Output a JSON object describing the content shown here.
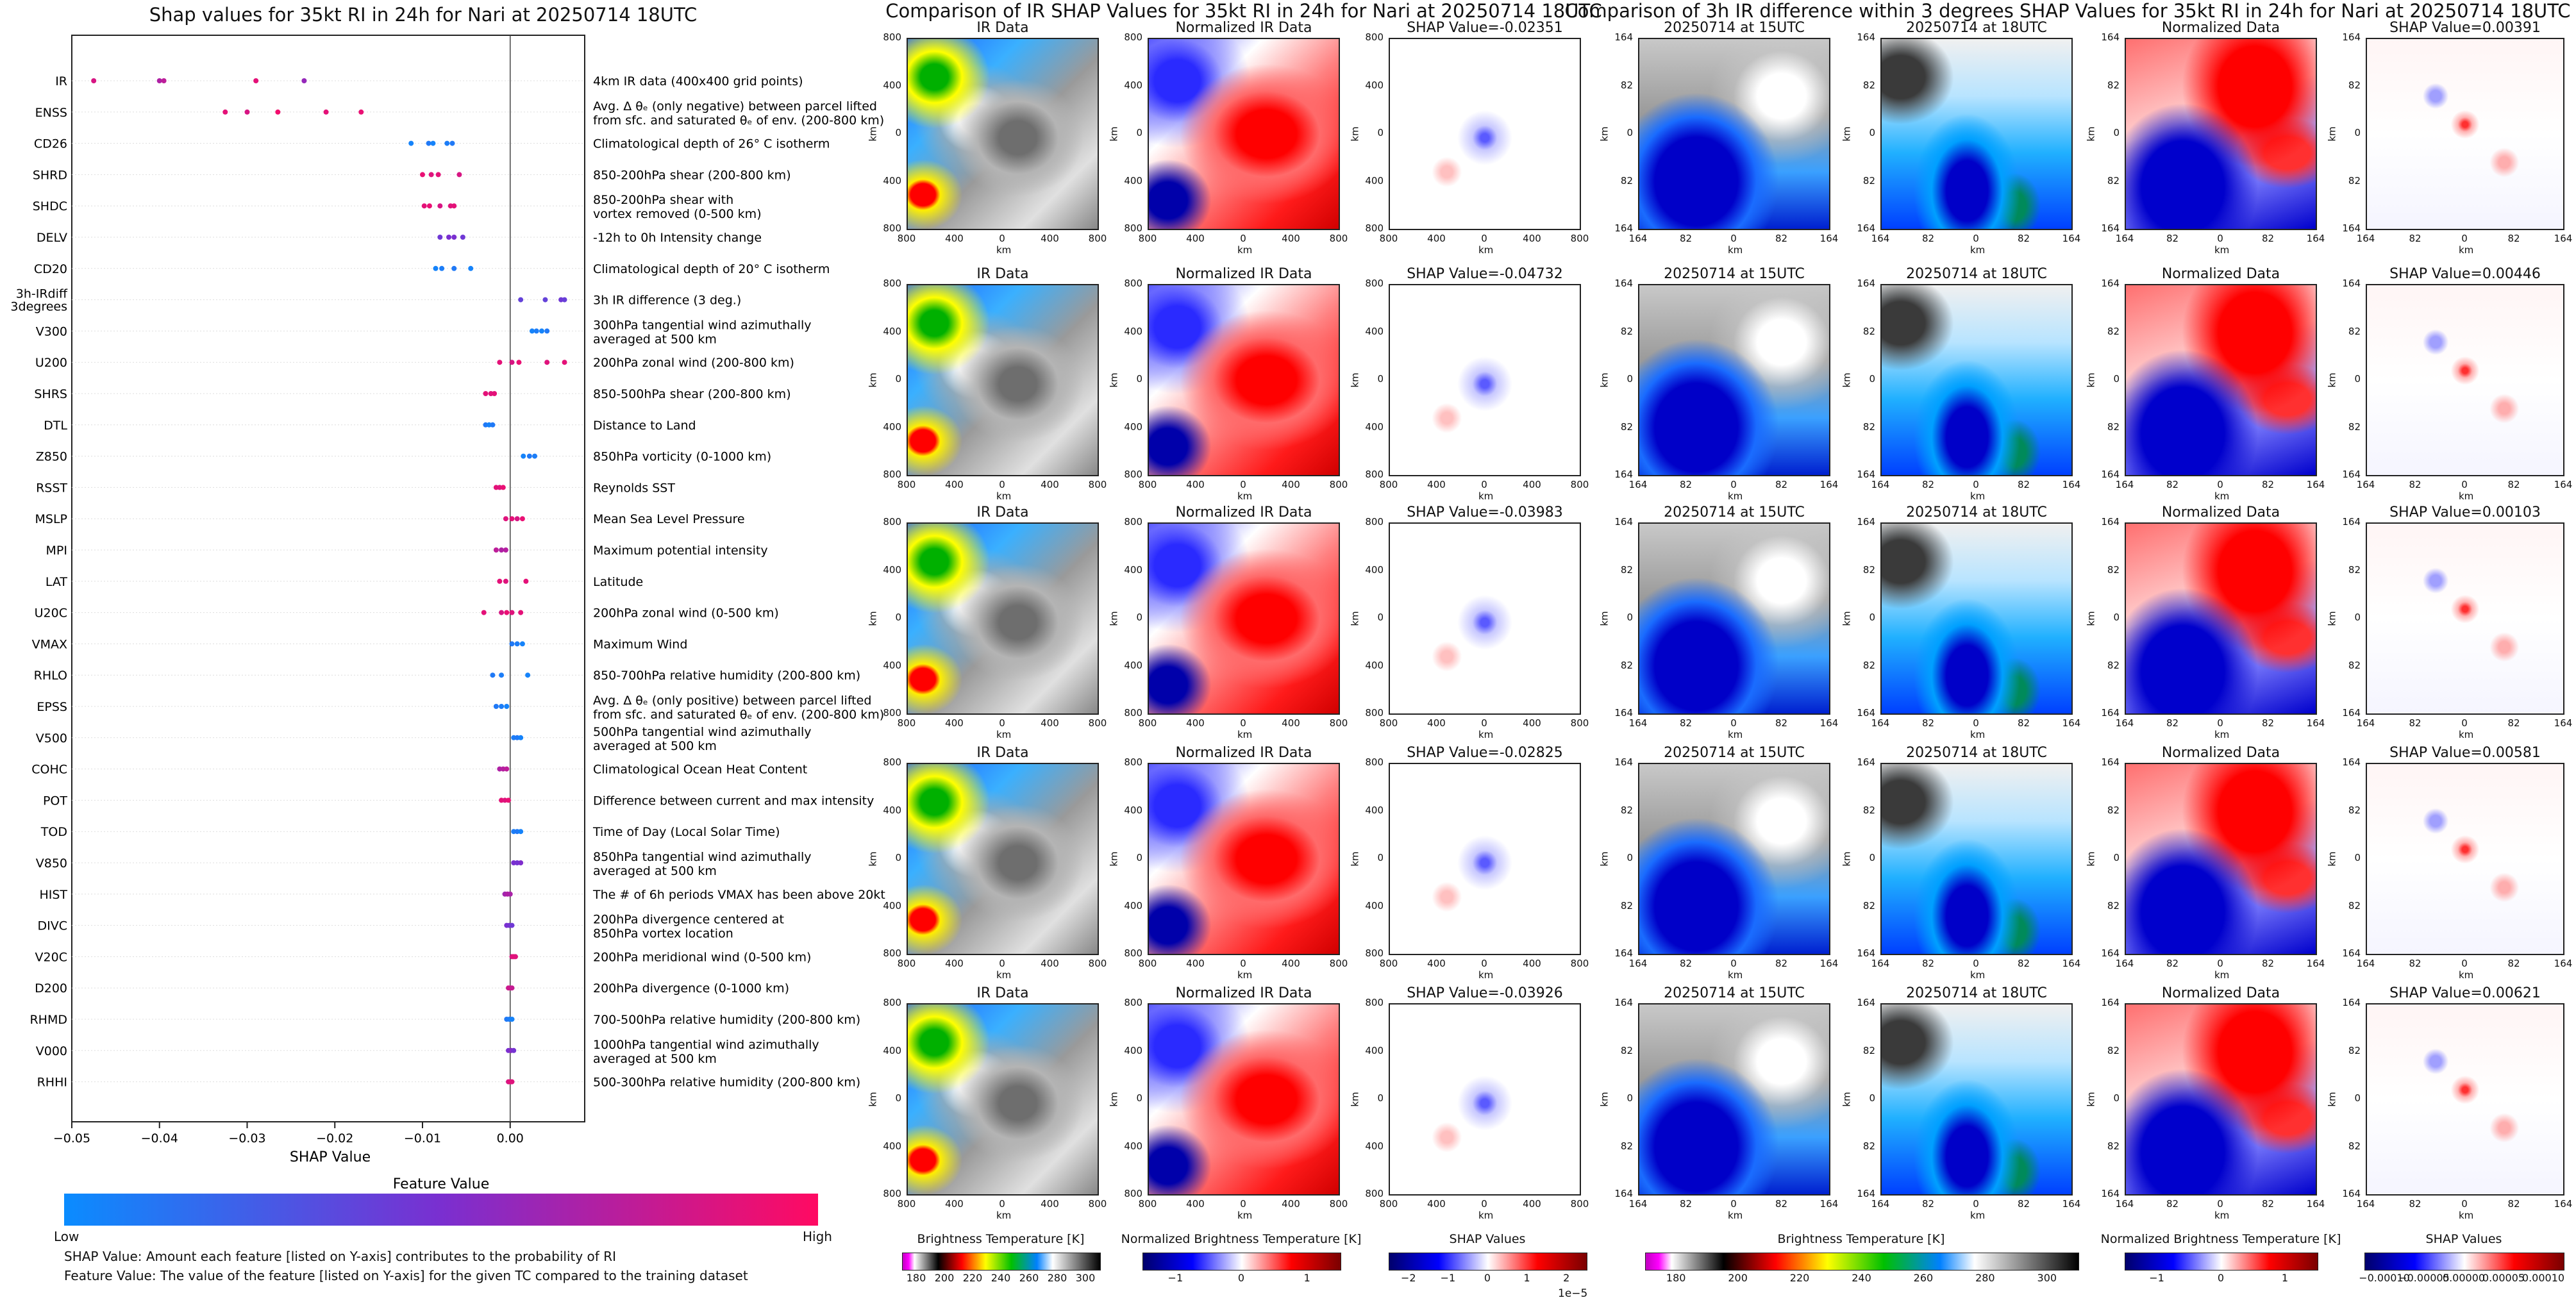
{
  "shap_title": "Shap values for 35kt RI in 24h for Nari at 20250714 18UTC",
  "ir_title": "Comparison of IR SHAP Values for 35kt RI in 24h for Nari at 20250714 18UTC",
  "diff_title": "Comparison of 3h IR difference within 3 degrees SHAP Values for 35kt RI in 24h for Nari at 20250714 18UTC",
  "legend": {
    "title": "Feature Value",
    "low": "Low",
    "high": "High"
  },
  "footnotes": [
    "SHAP Value: Amount each feature [listed on Y-axis] contributes to the probability of RI",
    "Feature Value: The value of the feature [listed on Y-axis] for the given TC compared to the training dataset"
  ],
  "ir_panels": {
    "col_titles": [
      "IR Data",
      "Normalized IR Data"
    ],
    "shap_values": [
      "SHAP Value=-0.02351",
      "SHAP Value=-0.04732",
      "SHAP Value=-0.03983",
      "SHAP Value=-0.02825",
      "SHAP Value=-0.03926"
    ],
    "ticks": [
      "800",
      "400",
      "0",
      "400",
      "800"
    ],
    "axis_label": "km"
  },
  "diff_panels": {
    "col_titles": [
      "20250714 at 15UTC",
      "20250714 at 18UTC",
      "Normalized Data"
    ],
    "shap_values": [
      "SHAP Value=0.00391",
      "SHAP Value=0.00446",
      "SHAP Value=0.00103",
      "SHAP Value=0.00581",
      "SHAP Value=0.00621"
    ],
    "ticks": [
      "164",
      "82",
      "0",
      "82",
      "164"
    ],
    "axis_label": "km"
  },
  "colorbars": {
    "ir_bt": {
      "label": "Brightness Temperature [K]",
      "ticks": [
        "180",
        "200",
        "220",
        "240",
        "260",
        "280",
        "300"
      ]
    },
    "ir_norm": {
      "label": "Normalized Brightness Temperature [K]",
      "ticks": [
        "−1",
        "0",
        "1"
      ]
    },
    "ir_shap": {
      "label": "SHAP Values",
      "ticks": [
        "−2",
        "−1",
        "0",
        "1",
        "2"
      ],
      "exponent": "1e−5"
    },
    "d_bt": {
      "label": "Brightness Temperature [K]",
      "ticks": [
        "180",
        "200",
        "220",
        "240",
        "260",
        "280",
        "300"
      ]
    },
    "d_norm": {
      "label": "Normalized Brightness Temperature [K]",
      "ticks": [
        "−1",
        "0",
        "1"
      ]
    },
    "d_shap": {
      "label": "SHAP Values",
      "ticks": [
        "−0.00010",
        "−0.00005",
        "0.00000",
        "0.00005",
        "0.00010"
      ]
    }
  },
  "chart_data": {
    "type": "scatter",
    "title": "Shap values for 35kt RI in 24h for Nari at 20250714 18UTC",
    "xlabel": "SHAP Value",
    "xlim": [
      -0.05,
      0.0085
    ],
    "xticks": [
      -0.05,
      -0.04,
      -0.03,
      -0.02,
      -0.01,
      0.0
    ],
    "features": [
      {
        "name": "IR",
        "desc": "4km IR data (400x400 grid points)",
        "shap": [
          -0.0475,
          -0.04,
          -0.0395,
          -0.029,
          -0.0235
        ],
        "fv": [
          0.85,
          0.7,
          0.75,
          0.9,
          0.6
        ]
      },
      {
        "name": "ENSS",
        "desc": "Avg. Δ θₑ (only negative) between parcel lifted\nfrom sfc. and saturated θₑ of env. (200-800 km)",
        "shap": [
          -0.0325,
          -0.03,
          -0.0265,
          -0.021,
          -0.017
        ],
        "fv": [
          0.9,
          0.85,
          0.95,
          0.9,
          0.92
        ]
      },
      {
        "name": "CD26",
        "desc": "Climatological depth of 26° C isotherm",
        "shap": [
          -0.0113,
          -0.0093,
          -0.0088,
          -0.0072,
          -0.0066
        ],
        "fv": [
          0.05,
          0.1,
          0.05,
          0.08,
          0.1
        ]
      },
      {
        "name": "SHRD",
        "desc": "850-200hPa shear (200-800 km)",
        "shap": [
          -0.01,
          -0.009,
          -0.0082,
          -0.0058
        ],
        "fv": [
          0.92,
          0.88,
          0.9,
          0.85
        ]
      },
      {
        "name": "SHDC",
        "desc": "850-200hPa shear with\nvortex removed (0-500 km)",
        "shap": [
          -0.0098,
          -0.0092,
          -0.008,
          -0.0068,
          -0.0064
        ],
        "fv": [
          0.9,
          0.92,
          0.85,
          0.88,
          0.9
        ]
      },
      {
        "name": "DELV",
        "desc": "-12h to 0h Intensity change",
        "shap": [
          -0.008,
          -0.007,
          -0.0064,
          -0.0054
        ],
        "fv": [
          0.45,
          0.5,
          0.5,
          0.45
        ]
      },
      {
        "name": "CD20",
        "desc": "Climatological depth of 20° C isotherm",
        "shap": [
          -0.0085,
          -0.0078,
          -0.0064,
          -0.0045
        ],
        "fv": [
          0.05,
          0.08,
          0.1,
          0.05
        ]
      },
      {
        "name": "3h-IRdiff\n3degrees",
        "desc": "3h IR difference (3 deg.)",
        "shap": [
          0.0012,
          0.004,
          0.0058,
          0.0062
        ],
        "fv": [
          0.4,
          0.4,
          0.45,
          0.42
        ]
      },
      {
        "name": "V300",
        "desc": "300hPa tangential wind azimuthally\naveraged at 500 km",
        "shap": [
          0.0025,
          0.003,
          0.0036,
          0.0042
        ],
        "fv": [
          0.05,
          0.08,
          0.05,
          0.1
        ]
      },
      {
        "name": "U200",
        "desc": "200hPa zonal wind (200-800 km)",
        "shap": [
          -0.0012,
          0.0002,
          0.001,
          0.0042,
          0.0062
        ],
        "fv": [
          0.9,
          0.85,
          0.92,
          0.88,
          0.9
        ]
      },
      {
        "name": "SHRS",
        "desc": "850-500hPa shear (200-800 km)",
        "shap": [
          -0.0028,
          -0.0022,
          -0.0018
        ],
        "fv": [
          0.9,
          0.88,
          0.9
        ]
      },
      {
        "name": "DTL",
        "desc": "Distance to Land",
        "shap": [
          -0.0028,
          -0.0024,
          -0.002
        ],
        "fv": [
          0.1,
          0.05,
          0.1
        ]
      },
      {
        "name": "Z850",
        "desc": "850hPa vorticity (0-1000 km)",
        "shap": [
          0.0015,
          0.0022,
          0.0028
        ],
        "fv": [
          0.05,
          0.1,
          0.08
        ]
      },
      {
        "name": "RSST",
        "desc": "Reynolds SST",
        "shap": [
          -0.0016,
          -0.0012,
          -0.0008
        ],
        "fv": [
          0.9,
          0.88,
          0.92
        ]
      },
      {
        "name": "MSLP",
        "desc": "Mean Sea Level Pressure",
        "shap": [
          -0.0005,
          0.0002,
          0.0008,
          0.0014
        ],
        "fv": [
          0.88,
          0.9,
          0.85,
          0.92
        ]
      },
      {
        "name": "MPI",
        "desc": "Maximum potential intensity",
        "shap": [
          -0.0016,
          -0.001,
          -0.0005
        ],
        "fv": [
          0.75,
          0.7,
          0.72
        ]
      },
      {
        "name": "LAT",
        "desc": "Latitude",
        "shap": [
          -0.0012,
          -0.0005,
          0.0018
        ],
        "fv": [
          0.9,
          0.88,
          0.9
        ]
      },
      {
        "name": "U20C",
        "desc": "200hPa zonal wind (0-500 km)",
        "shap": [
          -0.003,
          -0.001,
          -0.0004,
          0.0002,
          0.0012
        ],
        "fv": [
          0.9,
          0.85,
          0.92,
          0.88,
          0.9
        ]
      },
      {
        "name": "VMAX",
        "desc": "Maximum Wind",
        "shap": [
          0.0002,
          0.0008,
          0.0014
        ],
        "fv": [
          0.1,
          0.08,
          0.05
        ]
      },
      {
        "name": "RHLO",
        "desc": "850-700hPa relative humidity (200-800 km)",
        "shap": [
          -0.002,
          -0.001,
          0.002
        ],
        "fv": [
          0.1,
          0.08,
          0.05
        ]
      },
      {
        "name": "EPSS",
        "desc": "Avg. Δ θₑ (only positive) between parcel lifted\nfrom sfc. and saturated θₑ of env. (200-800 km)",
        "shap": [
          -0.0016,
          -0.001,
          -0.0004
        ],
        "fv": [
          0.1,
          0.08,
          0.05
        ]
      },
      {
        "name": "V500",
        "desc": "500hPa tangential wind azimuthally\naveraged at 500 km",
        "shap": [
          0.0004,
          0.0008,
          0.0012
        ],
        "fv": [
          0.08,
          0.1,
          0.05
        ]
      },
      {
        "name": "COHC",
        "desc": "Climatological Ocean Heat Content",
        "shap": [
          -0.0012,
          -0.0008,
          -0.0004
        ],
        "fv": [
          0.7,
          0.72,
          0.75
        ]
      },
      {
        "name": "POT",
        "desc": "Difference between current and max intensity",
        "shap": [
          -0.001,
          -0.0006,
          -0.0002
        ],
        "fv": [
          0.9,
          0.88,
          0.92
        ]
      },
      {
        "name": "TOD",
        "desc": "Time of Day (Local Solar Time)",
        "shap": [
          0.0004,
          0.0008,
          0.0012
        ],
        "fv": [
          0.08,
          0.1,
          0.05
        ]
      },
      {
        "name": "V850",
        "desc": "850hPa tangential wind azimuthally\naveraged at 500 km",
        "shap": [
          0.0004,
          0.0008,
          0.0012
        ],
        "fv": [
          0.5,
          0.48,
          0.52
        ]
      },
      {
        "name": "HIST",
        "desc": "The # of 6h periods VMAX has been above 20kt",
        "shap": [
          -0.0006,
          -0.0003,
          0.0
        ],
        "fv": [
          0.65,
          0.7,
          0.68
        ]
      },
      {
        "name": "DIVC",
        "desc": "200hPa divergence centered at\n850hPa vortex location",
        "shap": [
          -0.0004,
          -0.0001,
          0.0002
        ],
        "fv": [
          0.5,
          0.48,
          0.45
        ]
      },
      {
        "name": "V20C",
        "desc": "200hPa meridional wind (0-500 km)",
        "shap": [
          0.0002,
          0.0004,
          0.0006
        ],
        "fv": [
          0.85,
          0.9,
          0.88
        ]
      },
      {
        "name": "D200",
        "desc": "200hPa divergence (0-1000 km)",
        "shap": [
          -0.0002,
          0.0,
          0.0002
        ],
        "fv": [
          0.8,
          0.82,
          0.78
        ]
      },
      {
        "name": "RHMD",
        "desc": "700-500hPa relative humidity (200-800 km)",
        "shap": [
          -0.0004,
          -0.0001,
          0.0002
        ],
        "fv": [
          0.1,
          0.08,
          0.05
        ]
      },
      {
        "name": "V000",
        "desc": "1000hPa tangential wind azimuthally\naveraged at 500 km",
        "shap": [
          -0.0002,
          0.0001,
          0.0004
        ],
        "fv": [
          0.5,
          0.55,
          0.48
        ]
      },
      {
        "name": "RHHI",
        "desc": "500-300hPa relative humidity (200-800 km)",
        "shap": [
          -0.0002,
          0.0,
          0.0002
        ],
        "fv": [
          0.85,
          0.9,
          0.88
        ]
      }
    ]
  }
}
